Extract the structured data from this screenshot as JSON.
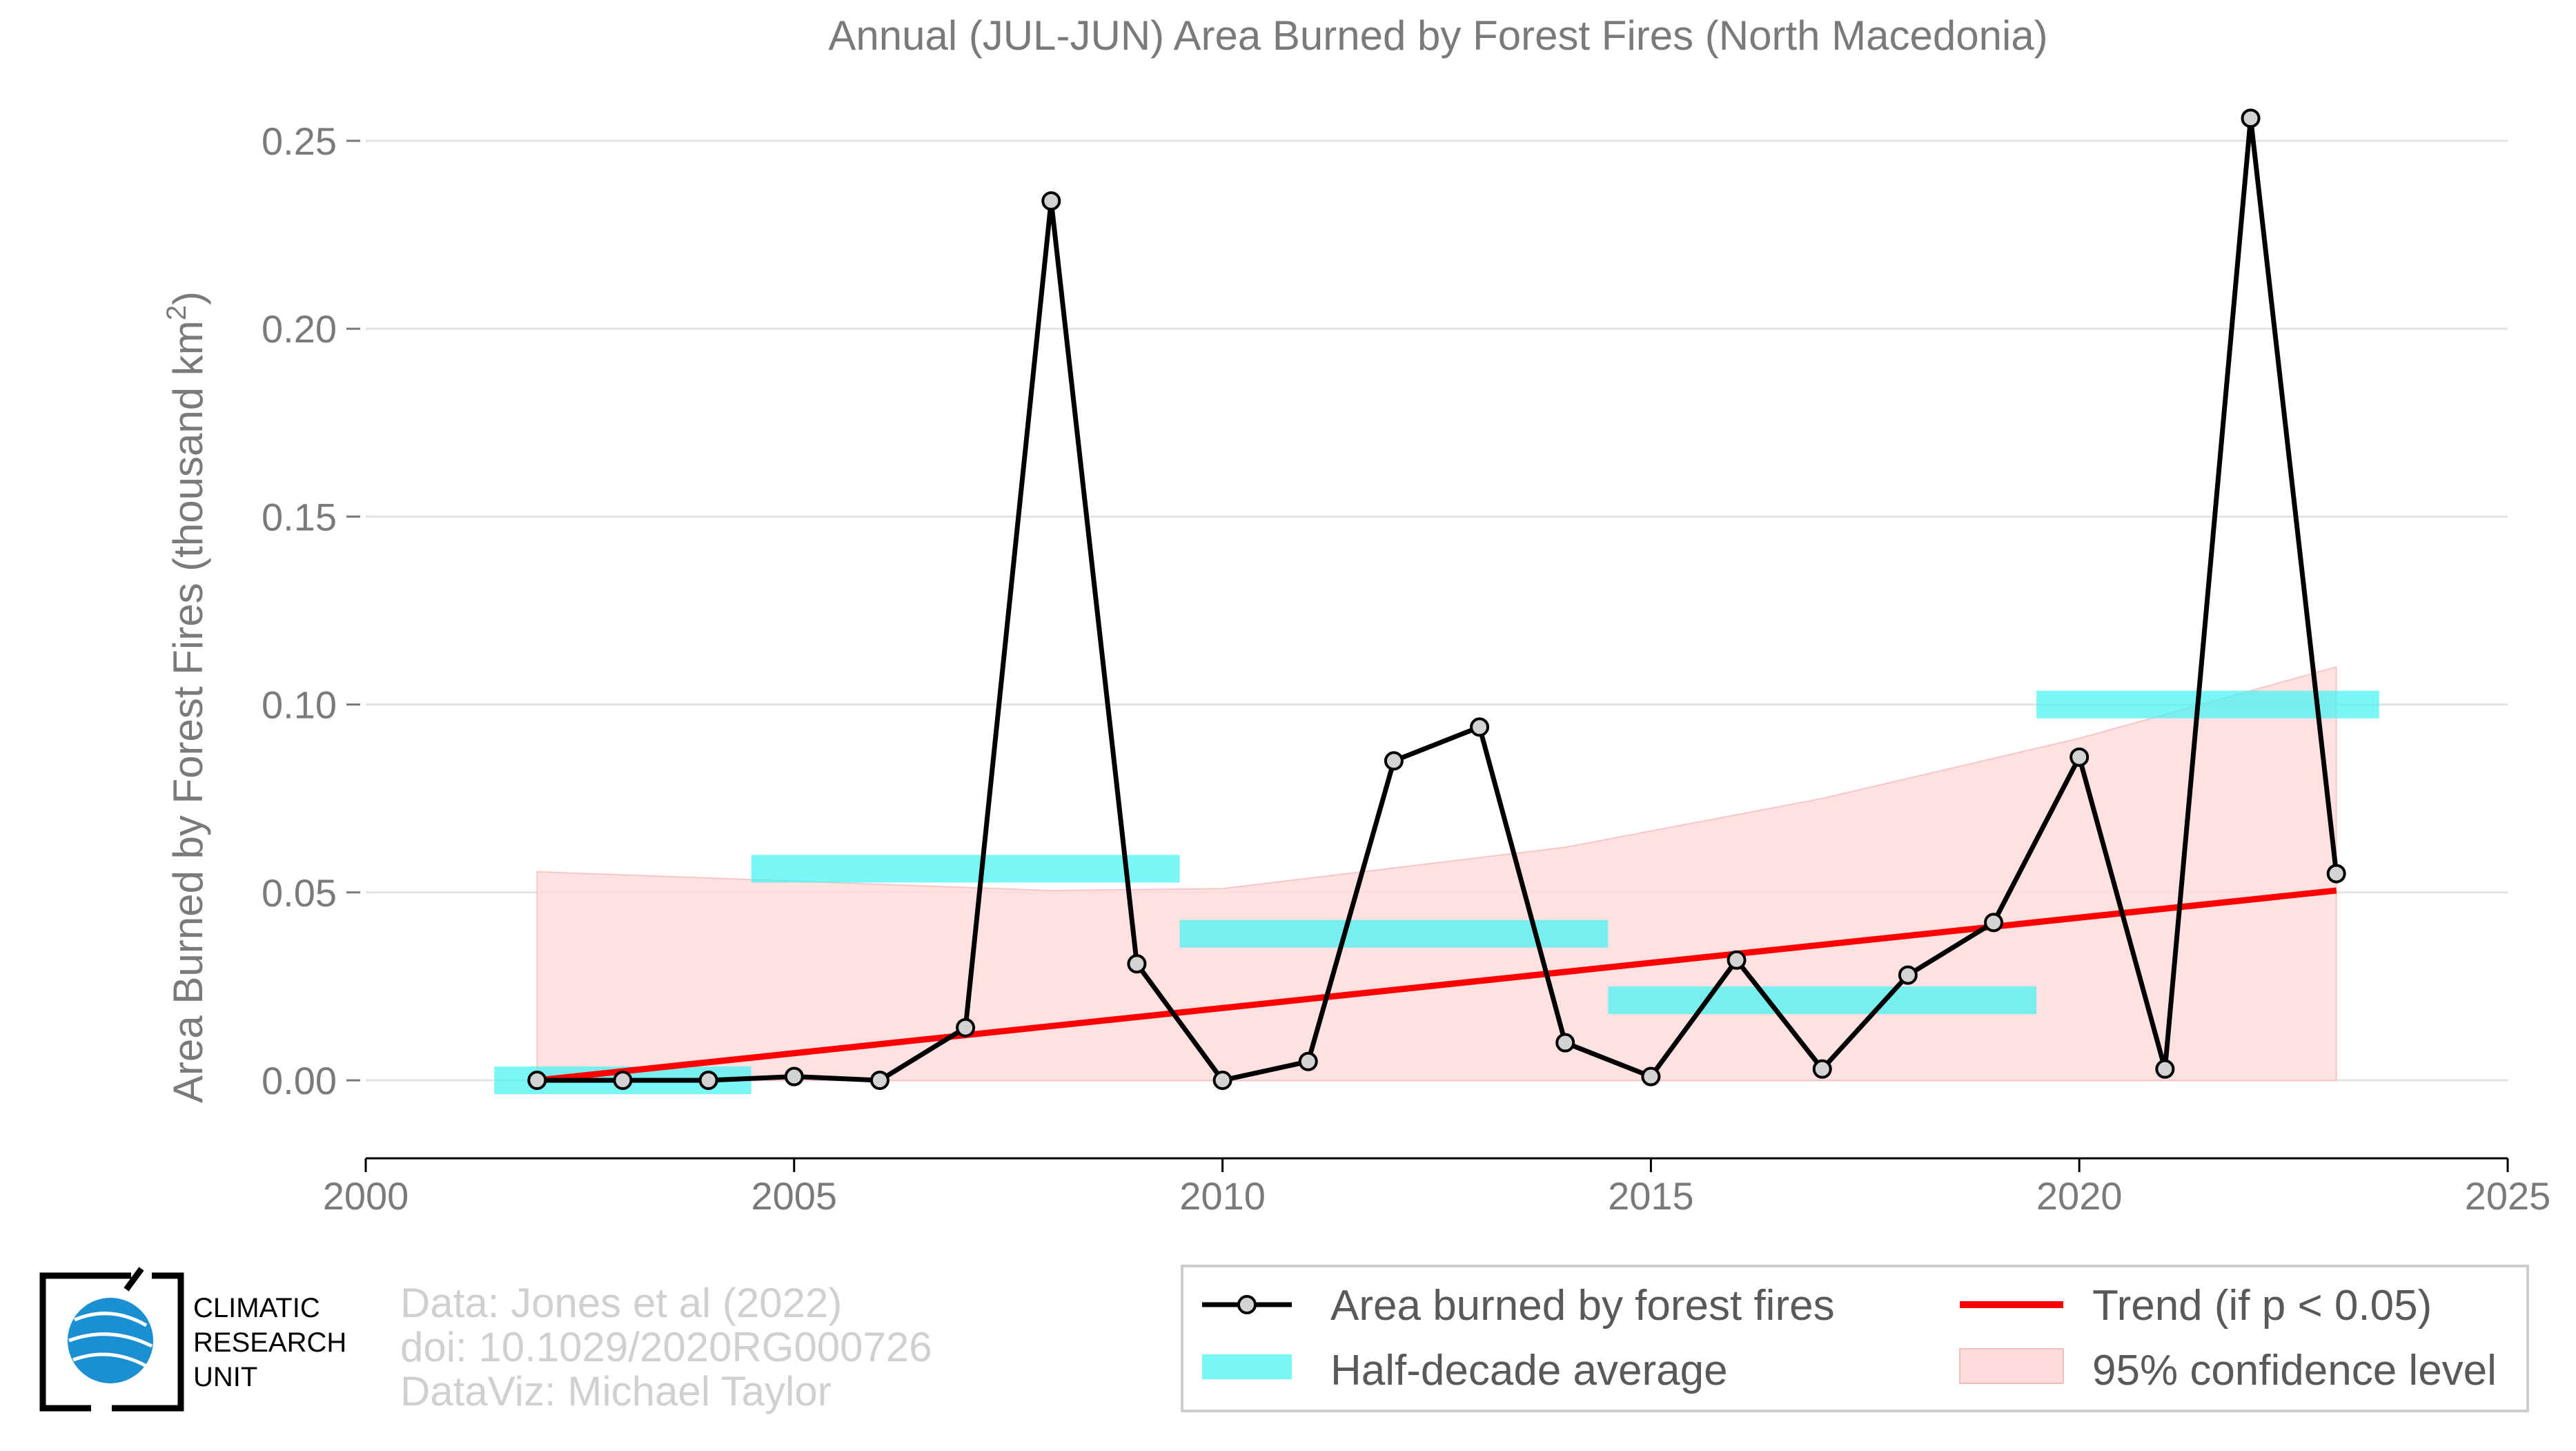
{
  "chart_data": {
    "type": "line",
    "title": "Annual (JUL-JUN) Area Burned by Forest Fires (North Macedonia)",
    "ylabel_main": "Area Burned by Forest Fires (thousand km",
    "ylabel_sup": "2",
    "ylabel_close": ")",
    "xlim": [
      2000,
      2025
    ],
    "ylim": [
      -0.02,
      0.255
    ],
    "xticks": [
      2000,
      2005,
      2010,
      2015,
      2020,
      2025
    ],
    "xtick_labels": [
      "2000",
      "2005",
      "2010",
      "2015",
      "2020",
      "2025"
    ],
    "yticks": [
      0.0,
      0.05,
      0.1,
      0.15,
      0.2,
      0.25
    ],
    "ytick_labels": [
      "0.00",
      "0.05",
      "0.10",
      "0.15",
      "0.20",
      "0.25"
    ],
    "grid": "horizontal",
    "series": [
      {
        "name": "Area burned by forest fires",
        "color": "#000000",
        "marker_fill": "#d3d3d3",
        "x": [
          2002,
          2003,
          2004,
          2005,
          2006,
          2007,
          2008,
          2009,
          2010,
          2011,
          2012,
          2013,
          2014,
          2015,
          2016,
          2017,
          2018,
          2019,
          2020,
          2021,
          2022,
          2023
        ],
        "y": [
          0.0,
          0.0,
          0.0,
          0.001,
          0.0,
          0.014,
          0.234,
          0.031,
          0.0,
          0.005,
          0.085,
          0.094,
          0.01,
          0.001,
          0.032,
          0.003,
          0.028,
          0.042,
          0.086,
          0.003,
          0.256,
          0.055
        ]
      },
      {
        "name": "Half-decade average",
        "color": "#40f3f3",
        "segments": [
          {
            "x0": 2001.5,
            "x1": 2004.5,
            "y": 0.0
          },
          {
            "x0": 2004.5,
            "x1": 2009.5,
            "y": 0.0563
          },
          {
            "x0": 2009.5,
            "x1": 2014.5,
            "y": 0.039
          },
          {
            "x0": 2014.5,
            "x1": 2019.5,
            "y": 0.0213
          },
          {
            "x0": 2019.5,
            "x1": 2023.5,
            "y": 0.1
          }
        ]
      },
      {
        "name": "Trend (if p < 0.05)",
        "color": "#ff0000",
        "x": [
          2002,
          2023
        ],
        "y": [
          0.0,
          0.0505
        ]
      },
      {
        "name": "95% confidence level",
        "color": "#ffdcdc",
        "x": [
          2002,
          2008,
          2010,
          2014,
          2017,
          2020,
          2023
        ],
        "upper": [
          0.0555,
          0.0505,
          0.051,
          0.062,
          0.075,
          0.091,
          0.11
        ],
        "lower": [
          0.0,
          0.0,
          0.0,
          0.0,
          0.0,
          0.0,
          0.0
        ]
      }
    ]
  },
  "credits": {
    "line1": "Data: Jones et al (2022)",
    "line2": "doi: 10.1029/2020RG000726",
    "line3": "DataViz: Michael Taylor"
  },
  "logo": {
    "line1": "CLIMATIC",
    "line2": "RESEARCH",
    "line3": "UNIT"
  }
}
